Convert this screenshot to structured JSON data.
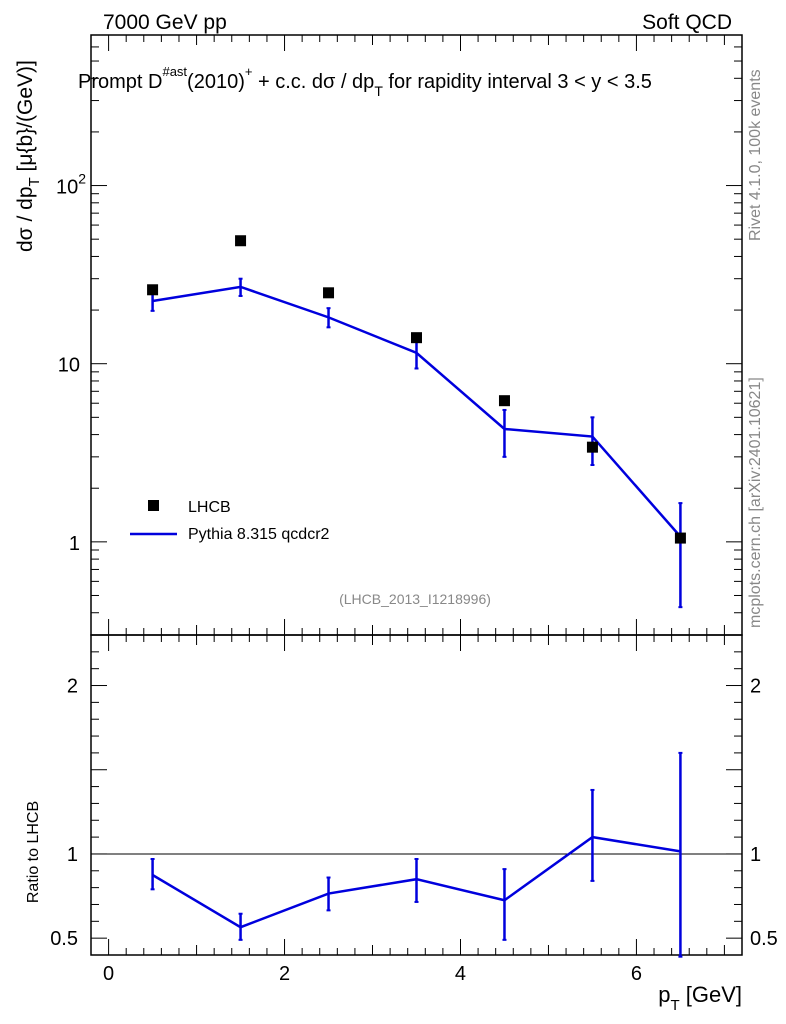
{
  "header": {
    "left": "7000 GeV pp",
    "right": "Soft QCD"
  },
  "title": {
    "main": "Prompt D",
    "sup": "#ast",
    "mid": "(2010)",
    "sup2": "+",
    "rest": " + c.c.  dσ / dp",
    "sub": "T",
    "tail": " for rapidity interval 3 < y < 3.5"
  },
  "side": {
    "rivet": "Rivet 4.1.0,  100k events",
    "mcplots": "mcplots.cern.ch [arXiv:2401.10621]"
  },
  "watermark": "(LHCB_2013_I1218996)",
  "legend": [
    {
      "label": "LHCB",
      "kind": "marker"
    },
    {
      "label": "Pythia 8.315 qcdcr2",
      "kind": "line"
    }
  ],
  "colors": {
    "mc": "#0000dd",
    "data": "#000000",
    "grey": "#888888"
  },
  "chart_data": [
    {
      "type": "scatter",
      "panel": "main",
      "yscale": "log",
      "ylabel": "dσ / dp_T [μ{b}/(GeV)]",
      "xlim": [
        -0.2,
        7.2
      ],
      "ylim": [
        0.3,
        700
      ],
      "yticks": [
        {
          "value": 1,
          "label": "1"
        },
        {
          "value": 10,
          "label": "10"
        },
        {
          "value": 100,
          "label": "10",
          "sup": "2"
        }
      ],
      "series": [
        {
          "name": "LHCB",
          "x": [
            0.5,
            1.5,
            2.5,
            3.5,
            4.5,
            5.5,
            6.5
          ],
          "y": [
            26.0,
            49.0,
            25.0,
            14.0,
            6.2,
            3.4,
            1.05
          ]
        },
        {
          "name": "Pythia 8.315 qcdcr2",
          "x": [
            0.5,
            1.5,
            2.5,
            3.5,
            4.5,
            5.5,
            6.5
          ],
          "y": [
            22.5,
            27.0,
            18.2,
            11.5,
            4.3,
            3.9,
            1.07
          ],
          "yerr_low": [
            19.8,
            24.0,
            16.0,
            9.4,
            3.0,
            2.7,
            0.43
          ],
          "yerr_high": [
            25.0,
            30.0,
            20.5,
            13.5,
            5.5,
            5.0,
            1.65
          ]
        }
      ]
    },
    {
      "type": "line",
      "panel": "ratio",
      "ylabel": "Ratio to LHCB",
      "xlabel": "p_T [GeV]",
      "xlim": [
        -0.2,
        7.2
      ],
      "ylim": [
        0.4,
        2.3
      ],
      "xticks": [
        0,
        2,
        4,
        6
      ],
      "yticks": [
        0.5,
        1,
        2
      ],
      "reference": 1.0,
      "series": [
        {
          "name": "Pythia 8.315 qcdcr2 / LHCB",
          "x": [
            0.5,
            1.5,
            2.5,
            3.5,
            4.5,
            5.5,
            6.5
          ],
          "y": [
            0.875,
            0.565,
            0.765,
            0.85,
            0.725,
            1.1,
            1.015
          ],
          "yerr_low": [
            0.79,
            0.49,
            0.665,
            0.715,
            0.49,
            0.84,
            0.39
          ],
          "yerr_high": [
            0.97,
            0.645,
            0.86,
            0.97,
            0.91,
            1.38,
            1.6
          ]
        }
      ]
    }
  ]
}
